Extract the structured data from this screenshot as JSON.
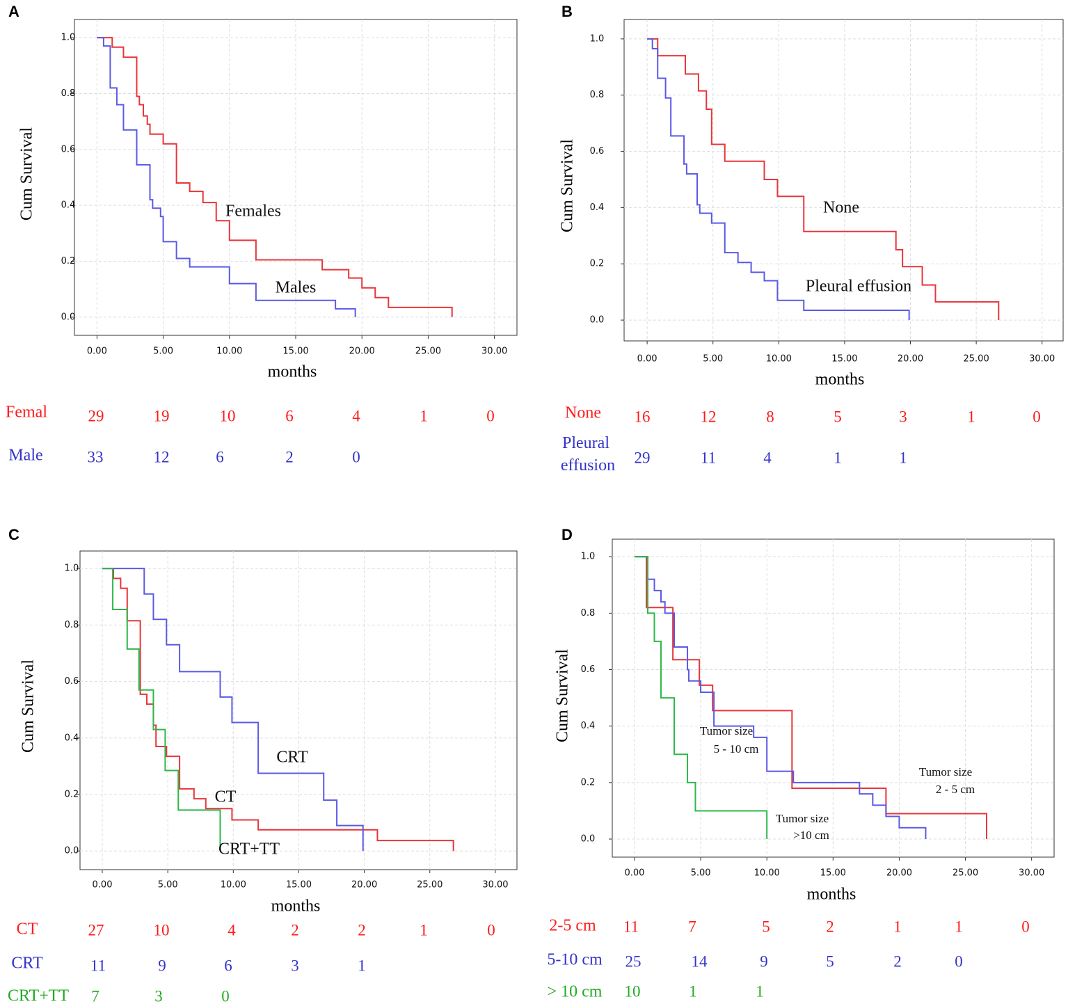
{
  "chart_data": [
    {
      "type": "step",
      "panel": "A",
      "ylabel": "Cum Survival",
      "xlabel": "months",
      "xlim": [
        -1.7,
        31.7
      ],
      "ylim": [
        -0.065,
        1.065
      ],
      "xticks": [
        {
          "value": 0,
          "label": "0.00"
        },
        {
          "value": 5,
          "label": "5.00"
        },
        {
          "value": 10,
          "label": "10.00"
        },
        {
          "value": 15,
          "label": "15.00"
        },
        {
          "value": 20,
          "label": "20.00"
        },
        {
          "value": 25,
          "label": "25.00"
        },
        {
          "value": 30,
          "label": "30.00"
        }
      ],
      "yticks": [
        {
          "value": 0,
          "label": "0.0"
        },
        {
          "value": 0.2,
          "label": "0.2"
        },
        {
          "value": 0.4,
          "label": "0.4"
        },
        {
          "value": 0.6,
          "label": "0.6"
        },
        {
          "value": 0.8,
          "label": "0.8"
        },
        {
          "value": 1,
          "label": "1.0"
        }
      ],
      "grid": true,
      "series": [
        {
          "name": "Females",
          "color": "#e8353a",
          "x": [
            0,
            1.15,
            2,
            3,
            3.2,
            3.5,
            3.8,
            4,
            5,
            6,
            7,
            8,
            9,
            10,
            12,
            17,
            19,
            20,
            21,
            22,
            26.8
          ],
          "values": [
            1,
            0.966,
            0.93,
            0.79,
            0.76,
            0.72,
            0.69,
            0.655,
            0.62,
            0.48,
            0.45,
            0.41,
            0.345,
            0.275,
            0.205,
            0.17,
            0.14,
            0.105,
            0.07,
            0.035,
            0
          ]
        },
        {
          "name": "Males",
          "color": "#5a5ae6",
          "x": [
            0,
            0.5,
            1,
            1.5,
            2,
            3,
            4,
            4.2,
            4.8,
            5,
            6,
            7,
            10,
            12,
            18,
            19.5
          ],
          "values": [
            1,
            0.97,
            0.82,
            0.76,
            0.67,
            0.545,
            0.42,
            0.39,
            0.36,
            0.27,
            0.21,
            0.18,
            0.12,
            0.06,
            0.03,
            0
          ]
        }
      ],
      "annotations": [
        "Females",
        "Males"
      ],
      "risk_table": [
        {
          "label": "Femal",
          "color": "#ff1a1a",
          "counts": [
            29,
            19,
            10,
            6,
            4,
            1,
            0
          ]
        },
        {
          "label": "Male",
          "color": "#3333cc",
          "counts": [
            33,
            12,
            6,
            2,
            0
          ]
        }
      ]
    },
    {
      "type": "step",
      "panel": "B",
      "ylabel": "Cum Survival",
      "xlabel": "months",
      "xlim": [
        -1.75,
        31.6
      ],
      "ylim": [
        -0.074,
        1.069
      ],
      "xticks": [
        {
          "value": 0,
          "label": "0.00"
        },
        {
          "value": 5,
          "label": "5.00"
        },
        {
          "value": 10,
          "label": "10.00"
        },
        {
          "value": 15,
          "label": "15.00"
        },
        {
          "value": 20,
          "label": "20.00"
        },
        {
          "value": 25,
          "label": "25.00"
        },
        {
          "value": 30,
          "label": "30.00"
        }
      ],
      "yticks": [
        {
          "value": 0,
          "label": "0.0"
        },
        {
          "value": 0.2,
          "label": "0.2"
        },
        {
          "value": 0.4,
          "label": "0.4"
        },
        {
          "value": 0.6,
          "label": "0.6"
        },
        {
          "value": 0.8,
          "label": "0.8"
        },
        {
          "value": 1,
          "label": "1.0"
        }
      ],
      "grid": true,
      "series": [
        {
          "name": "None",
          "color": "#e8353a",
          "x": [
            0,
            0.8,
            2.9,
            3.9,
            4.5,
            4.9,
            5.9,
            8.9,
            9.9,
            11.9,
            18.9,
            19.4,
            20.9,
            21.9,
            26.7
          ],
          "values": [
            1,
            0.94,
            0.875,
            0.815,
            0.75,
            0.625,
            0.565,
            0.5,
            0.44,
            0.315,
            0.25,
            0.19,
            0.125,
            0.065,
            0
          ]
        },
        {
          "name": "Pleural effusion",
          "color": "#5a5ae6",
          "x": [
            0,
            0.4,
            0.8,
            1.4,
            1.8,
            2.8,
            3,
            3.8,
            4,
            4.9,
            5.9,
            6.9,
            7.9,
            8.9,
            9.9,
            11.9,
            19.9
          ],
          "values": [
            1,
            0.965,
            0.86,
            0.79,
            0.655,
            0.555,
            0.52,
            0.41,
            0.38,
            0.345,
            0.24,
            0.205,
            0.17,
            0.14,
            0.07,
            0.035,
            0
          ]
        }
      ],
      "annotations": [
        "None",
        "Pleural effusion"
      ],
      "risk_table": [
        {
          "label": "None",
          "color": "#ff1a1a",
          "counts": [
            16,
            12,
            8,
            5,
            3,
            1,
            0
          ]
        },
        {
          "label": "Pleural effusion",
          "color": "#3333cc",
          "counts": [
            29,
            11,
            4,
            1,
            1
          ]
        }
      ]
    },
    {
      "type": "step",
      "panel": "C",
      "ylabel": "Cum Survival",
      "xlabel": "months",
      "xlim": [
        -1.7,
        31.65
      ],
      "ylim": [
        -0.066,
        1.062
      ],
      "xticks": [
        {
          "value": 0,
          "label": "0.00"
        },
        {
          "value": 5,
          "label": "5.00"
        },
        {
          "value": 10,
          "label": "10.00"
        },
        {
          "value": 15,
          "label": "15.00"
        },
        {
          "value": 20,
          "label": "20.00"
        },
        {
          "value": 25,
          "label": "25.00"
        },
        {
          "value": 30,
          "label": "30.00"
        }
      ],
      "yticks": [
        {
          "value": 0,
          "label": "0.0"
        },
        {
          "value": 0.2,
          "label": "0.2"
        },
        {
          "value": 0.4,
          "label": "0.4"
        },
        {
          "value": 0.6,
          "label": "0.6"
        },
        {
          "value": 0.8,
          "label": "0.8"
        },
        {
          "value": 1,
          "label": "1.0"
        }
      ],
      "grid": true,
      "series": [
        {
          "name": "CT",
          "color": "#e8353a",
          "x": [
            0,
            0.85,
            1.4,
            1.9,
            2.9,
            3.4,
            3.9,
            4.1,
            4.9,
            5.9,
            7,
            7.9,
            9.9,
            11.9,
            21,
            26.8
          ],
          "values": [
            1,
            0.965,
            0.93,
            0.815,
            0.555,
            0.52,
            0.445,
            0.37,
            0.335,
            0.22,
            0.185,
            0.15,
            0.11,
            0.075,
            0.037,
            0
          ]
        },
        {
          "name": "CRT",
          "color": "#5a5ae6",
          "x": [
            0,
            3.2,
            3.9,
            4.9,
            5.9,
            9,
            9.9,
            11.9,
            16.9,
            17.9,
            19.9
          ],
          "values": [
            1,
            0.91,
            0.82,
            0.73,
            0.635,
            0.545,
            0.455,
            0.275,
            0.18,
            0.09,
            0
          ]
        },
        {
          "name": "CRT+TT",
          "color": "#2db84a",
          "x": [
            0,
            0.8,
            1.9,
            2.8,
            3.9,
            4.8,
            5.8,
            9
          ],
          "values": [
            1,
            0.855,
            0.715,
            0.57,
            0.43,
            0.285,
            0.145,
            0
          ]
        }
      ],
      "annotations": [
        "CRT",
        "CT",
        "CRT+TT"
      ],
      "risk_table": [
        {
          "label": "CT",
          "color": "#ff1a1a",
          "counts": [
            27,
            10,
            4,
            2,
            2,
            1,
            0
          ]
        },
        {
          "label": "CRT",
          "color": "#3333cc",
          "counts": [
            11,
            9,
            6,
            3,
            1
          ]
        },
        {
          "label": "CRT+TT",
          "color": "#22aa22",
          "counts": [
            7,
            3,
            0
          ]
        }
      ]
    },
    {
      "type": "step",
      "panel": "D",
      "ylabel": "Cum Survival",
      "xlabel": "months",
      "xlim": [
        -1.68,
        31.7
      ],
      "ylim": [
        -0.064,
        1.062
      ],
      "xticks": [
        {
          "value": 0,
          "label": "0.00"
        },
        {
          "value": 5,
          "label": "5.00"
        },
        {
          "value": 10,
          "label": "10.00"
        },
        {
          "value": 15,
          "label": "15.00"
        },
        {
          "value": 20,
          "label": "20.00"
        },
        {
          "value": 25,
          "label": "25.00"
        },
        {
          "value": 30,
          "label": "30.00"
        }
      ],
      "yticks": [
        {
          "value": 0,
          "label": "0.0"
        },
        {
          "value": 0.2,
          "label": "0.2"
        },
        {
          "value": 0.4,
          "label": "0.4"
        },
        {
          "value": 0.6,
          "label": "0.6"
        },
        {
          "value": 0.8,
          "label": "0.8"
        },
        {
          "value": 1,
          "label": "1.0"
        }
      ],
      "grid": true,
      "series": [
        {
          "name": "2-5 cm",
          "color": "#e8353a",
          "x": [
            0,
            0.9,
            2.9,
            4.9,
            5.9,
            11.9,
            19,
            26.6
          ],
          "values": [
            1,
            0.82,
            0.635,
            0.545,
            0.455,
            0.18,
            0.09,
            0
          ]
        },
        {
          "name": "5-10 cm",
          "color": "#5a5ae6",
          "x": [
            0,
            1,
            1.5,
            2,
            2.3,
            3,
            4,
            4.1,
            5,
            6,
            9,
            10,
            12,
            17,
            18,
            19,
            20,
            22
          ],
          "values": [
            1,
            0.92,
            0.88,
            0.84,
            0.8,
            0.68,
            0.6,
            0.56,
            0.52,
            0.4,
            0.36,
            0.24,
            0.2,
            0.16,
            0.12,
            0.08,
            0.04,
            0
          ]
        },
        {
          "name": "> 10 cm",
          "color": "#2db84a",
          "x": [
            0,
            1,
            1.5,
            2,
            3,
            4,
            4.6,
            10
          ],
          "values": [
            1,
            0.8,
            0.7,
            0.5,
            0.3,
            0.2,
            0.1,
            0
          ]
        }
      ],
      "annotations": [
        "Tumor size",
        "5 - 10 cm",
        "Tumor size",
        "2 - 5 cm",
        "Tumor size",
        ">10 cm"
      ],
      "risk_table": [
        {
          "label": "2-5 cm",
          "color": "#ff1a1a",
          "counts": [
            11,
            7,
            5,
            2,
            1,
            1,
            0
          ]
        },
        {
          "label": "5-10 cm",
          "color": "#3333cc",
          "counts": [
            25,
            14,
            9,
            5,
            2,
            0
          ]
        },
        {
          "label": "> 10 cm",
          "color": "#22aa22",
          "counts": [
            10,
            1,
            1
          ]
        }
      ]
    }
  ]
}
